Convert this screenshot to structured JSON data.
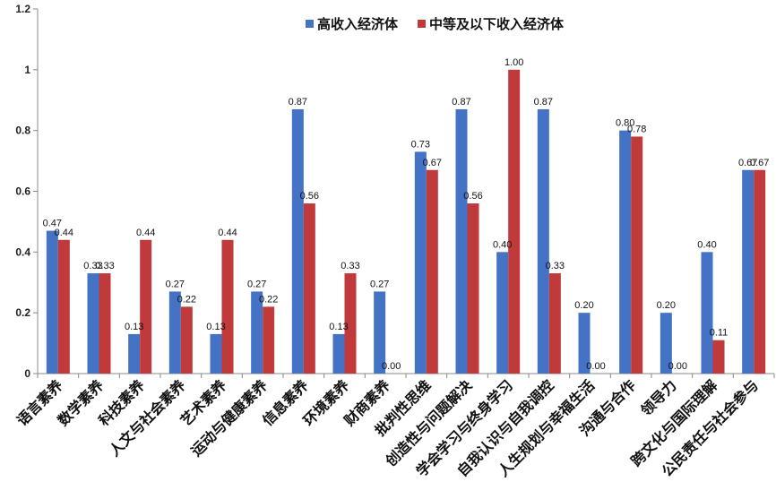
{
  "chart_data": {
    "type": "bar",
    "categories": [
      "语言素养",
      "数学素养",
      "科技素养",
      "人文与社会素养",
      "艺术素养",
      "运动与健康素养",
      "信息素养",
      "环境素养",
      "财商素养",
      "批判性思维",
      "创造性与问题解决",
      "学会学习与终身学习",
      "自我认识与自我调控",
      "人生规划与幸福生活",
      "沟通与合作",
      "领导力",
      "跨文化与国际理解",
      "公民责任与社会参与"
    ],
    "series": [
      {
        "name": "高收入经济体",
        "color": "#4472C4",
        "values": [
          0.47,
          0.33,
          0.13,
          0.27,
          0.13,
          0.27,
          0.87,
          0.13,
          0.27,
          0.73,
          0.87,
          0.4,
          0.87,
          0.2,
          0.8,
          0.2,
          0.4,
          0.67
        ],
        "labels": [
          "0.47",
          "0.33",
          "0.13",
          "0.27",
          "0.13",
          "0.27",
          "0.87",
          "0.13",
          "0.27",
          "0.73",
          "0.87",
          "0.40",
          "0.87",
          "0.20",
          "0.80",
          "0.20",
          "0.40",
          "0.67"
        ]
      },
      {
        "name": "中等及以下收入经济体",
        "color": "#C0393B",
        "values": [
          0.44,
          0.33,
          0.44,
          0.22,
          0.44,
          0.22,
          0.56,
          0.33,
          0.0,
          0.67,
          0.56,
          1.0,
          0.33,
          0.0,
          0.78,
          0.0,
          0.11,
          0.67
        ],
        "labels": [
          "0.44",
          "0.33",
          "0.44",
          "0.22",
          "0.44",
          "0.22",
          "0.56",
          "0.33",
          "0.00",
          "0.67",
          "0.56",
          "1.00",
          "0.33",
          "0.00",
          "0.78",
          "0.00",
          "0.11",
          "0.67"
        ]
      }
    ],
    "ylim": [
      0,
      1.2
    ],
    "yticks": [
      "0",
      "0.2",
      "0.4",
      "0.6",
      "0.8",
      "1",
      "1.2"
    ],
    "legend_position": "top",
    "grid": false
  }
}
